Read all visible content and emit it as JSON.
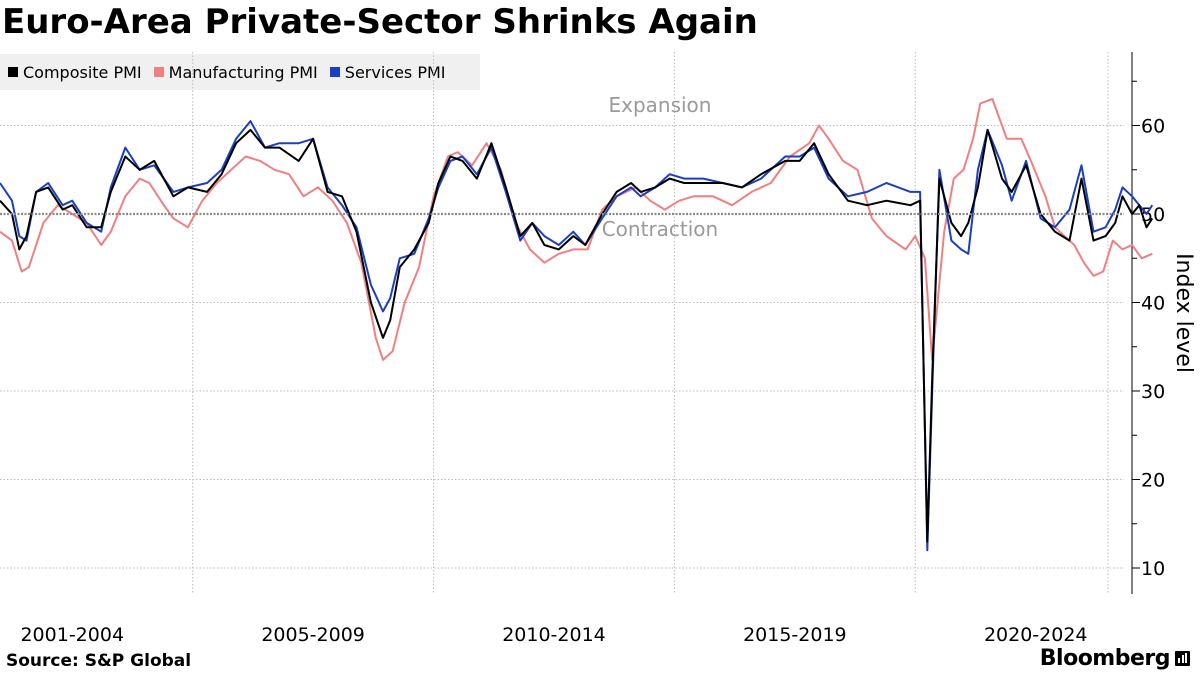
{
  "title": "Euro-Area Private-Sector Shrinks Again",
  "source": "Source: S&P Global",
  "brand": "Bloomberg",
  "colors": {
    "composite": "#000000",
    "manufacturing": "#f08080",
    "services": "#1a3fc2",
    "grid": "#bdbdbd",
    "annotation": "#9a9a9a"
  },
  "chart_data": {
    "type": "line",
    "ylabel": "Index level",
    "ylim": [
      7,
      68
    ],
    "yticks": [
      10,
      20,
      30,
      40,
      50,
      60
    ],
    "reference_line": 50,
    "x_range": [
      2001.0,
      2024.0
    ],
    "xtick_boundaries": [
      2005,
      2010,
      2015,
      2020
    ],
    "xlabels": [
      {
        "label": "2001-2004",
        "center": 2002.5
      },
      {
        "label": "2005-2009",
        "center": 2007.5
      },
      {
        "label": "2010-2014",
        "center": 2012.5
      },
      {
        "label": "2015-2019",
        "center": 2017.5
      },
      {
        "label": "2020-2024",
        "center": 2022.5
      }
    ],
    "annotations": [
      {
        "text": "Expansion",
        "x": 2014.7,
        "y": 61.5
      },
      {
        "text": "Contraction",
        "x": 2014.7,
        "y": 47.5
      }
    ],
    "series": [
      {
        "name": "Composite PMI",
        "key": "composite",
        "x": [
          2001.0,
          2001.25,
          2001.4,
          2001.55,
          2001.75,
          2002.0,
          2002.3,
          2002.5,
          2002.8,
          2003.1,
          2003.3,
          2003.6,
          2003.9,
          2004.2,
          2004.4,
          2004.6,
          2004.9,
          2005.3,
          2005.6,
          2005.9,
          2006.2,
          2006.5,
          2006.8,
          2007.2,
          2007.5,
          2007.8,
          2008.1,
          2008.4,
          2008.7,
          2008.95,
          2009.1,
          2009.3,
          2009.6,
          2009.9,
          2010.1,
          2010.35,
          2010.6,
          2010.9,
          2011.2,
          2011.5,
          2011.8,
          2012.05,
          2012.3,
          2012.6,
          2012.9,
          2013.15,
          2013.5,
          2013.8,
          2014.1,
          2014.3,
          2014.6,
          2014.9,
          2015.2,
          2015.6,
          2016.0,
          2016.4,
          2016.8,
          2017.3,
          2017.6,
          2017.9,
          2018.2,
          2018.6,
          2019.0,
          2019.4,
          2019.9,
          2020.1,
          2020.25,
          2020.35,
          2020.5,
          2020.75,
          2020.95,
          2021.1,
          2021.3,
          2021.5,
          2021.8,
          2022.0,
          2022.3,
          2022.6,
          2022.9,
          2023.2,
          2023.45,
          2023.7,
          2023.95,
          2024.15,
          2024.3,
          2024.5,
          2024.65,
          2024.8,
          2024.92
        ],
        "values": [
          51.5,
          50.0,
          46.0,
          47.5,
          52.5,
          53.0,
          50.5,
          51.0,
          48.5,
          48.5,
          52.5,
          56.5,
          55.0,
          56.0,
          54.0,
          52.0,
          53.0,
          52.5,
          54.5,
          58.0,
          59.5,
          57.5,
          57.5,
          56.0,
          58.5,
          52.5,
          52.0,
          48.0,
          40.0,
          36.0,
          38.0,
          44.0,
          46.0,
          49.0,
          53.5,
          56.5,
          56.0,
          54.0,
          58.0,
          53.0,
          47.5,
          49.0,
          46.5,
          46.0,
          47.5,
          46.5,
          50.0,
          52.5,
          53.5,
          52.5,
          53.0,
          54.0,
          53.5,
          53.5,
          53.5,
          53.0,
          54.5,
          56.0,
          56.0,
          58.0,
          54.5,
          51.5,
          51.0,
          51.5,
          51.0,
          51.5,
          13.0,
          31.5,
          54.0,
          49.0,
          47.5,
          49.0,
          53.0,
          59.5,
          54.0,
          52.5,
          55.5,
          50.0,
          48.0,
          47.0,
          54.0,
          47.0,
          47.5,
          49.0,
          52.0,
          50.0,
          51.0,
          48.5,
          49.5
        ]
      },
      {
        "name": "Manufacturing PMI",
        "key": "manufacturing",
        "x": [
          2001.0,
          2001.25,
          2001.45,
          2001.6,
          2001.9,
          2002.2,
          2002.5,
          2002.8,
          2003.1,
          2003.3,
          2003.6,
          2003.9,
          2004.1,
          2004.4,
          2004.6,
          2004.9,
          2005.2,
          2005.5,
          2005.8,
          2006.1,
          2006.4,
          2006.7,
          2007.0,
          2007.3,
          2007.6,
          2007.9,
          2008.2,
          2008.5,
          2008.8,
          2008.95,
          2009.15,
          2009.4,
          2009.7,
          2010.0,
          2010.3,
          2010.5,
          2010.8,
          2011.1,
          2011.4,
          2011.7,
          2012.0,
          2012.3,
          2012.6,
          2012.9,
          2013.2,
          2013.5,
          2013.8,
          2014.2,
          2014.5,
          2014.8,
          2015.1,
          2015.4,
          2015.8,
          2016.2,
          2016.6,
          2017.0,
          2017.4,
          2017.8,
          2018.0,
          2018.2,
          2018.5,
          2018.8,
          2019.1,
          2019.4,
          2019.8,
          2020.0,
          2020.2,
          2020.35,
          2020.6,
          2020.8,
          2021.0,
          2021.2,
          2021.35,
          2021.6,
          2021.9,
          2022.2,
          2022.4,
          2022.7,
          2022.9,
          2023.1,
          2023.3,
          2023.5,
          2023.7,
          2023.9,
          2024.1,
          2024.3,
          2024.5,
          2024.7,
          2024.92
        ],
        "values": [
          48.0,
          47.0,
          43.5,
          44.0,
          49.0,
          51.0,
          50.0,
          49.0,
          46.5,
          48.0,
          52.0,
          54.0,
          53.5,
          51.0,
          49.5,
          48.5,
          51.5,
          53.5,
          55.0,
          56.5,
          56.0,
          55.0,
          54.5,
          52.0,
          53.0,
          51.5,
          49.0,
          44.5,
          36.0,
          33.5,
          34.5,
          40.0,
          44.0,
          52.0,
          56.5,
          57.0,
          55.5,
          58.0,
          55.0,
          49.0,
          46.0,
          44.5,
          45.5,
          46.0,
          46.0,
          50.5,
          52.0,
          53.0,
          51.5,
          50.5,
          51.5,
          52.0,
          52.0,
          51.0,
          52.5,
          53.5,
          56.5,
          58.0,
          60.0,
          58.5,
          56.0,
          55.0,
          49.5,
          47.5,
          46.0,
          47.5,
          45.0,
          33.5,
          48.0,
          54.0,
          55.0,
          58.5,
          62.5,
          63.0,
          58.5,
          58.5,
          56.0,
          52.0,
          48.5,
          47.5,
          46.5,
          44.5,
          43.0,
          43.5,
          47.0,
          46.0,
          46.5,
          45.0,
          45.5
        ]
      },
      {
        "name": "Services PMI",
        "key": "services",
        "x": [
          2001.0,
          2001.25,
          2001.4,
          2001.55,
          2001.75,
          2002.0,
          2002.3,
          2002.5,
          2002.8,
          2003.1,
          2003.3,
          2003.6,
          2003.9,
          2004.2,
          2004.4,
          2004.6,
          2004.9,
          2005.3,
          2005.6,
          2005.9,
          2006.2,
          2006.5,
          2006.8,
          2007.2,
          2007.5,
          2007.8,
          2008.1,
          2008.4,
          2008.7,
          2008.95,
          2009.1,
          2009.3,
          2009.6,
          2009.9,
          2010.1,
          2010.35,
          2010.6,
          2010.9,
          2011.2,
          2011.5,
          2011.8,
          2012.05,
          2012.3,
          2012.6,
          2012.9,
          2013.15,
          2013.5,
          2013.8,
          2014.1,
          2014.3,
          2014.6,
          2014.9,
          2015.2,
          2015.6,
          2016.0,
          2016.4,
          2016.8,
          2017.3,
          2017.6,
          2017.9,
          2018.2,
          2018.6,
          2019.0,
          2019.4,
          2019.9,
          2020.1,
          2020.25,
          2020.35,
          2020.5,
          2020.75,
          2020.95,
          2021.1,
          2021.3,
          2021.5,
          2021.8,
          2022.0,
          2022.3,
          2022.6,
          2022.9,
          2023.2,
          2023.45,
          2023.7,
          2023.95,
          2024.15,
          2024.3,
          2024.5,
          2024.65,
          2024.8,
          2024.92
        ],
        "values": [
          53.5,
          51.5,
          47.5,
          47.0,
          52.5,
          53.5,
          51.0,
          51.5,
          49.0,
          48.0,
          53.0,
          57.5,
          55.0,
          55.5,
          54.0,
          52.5,
          53.0,
          53.5,
          55.0,
          58.5,
          60.5,
          57.5,
          58.0,
          58.0,
          58.5,
          53.0,
          51.0,
          48.5,
          42.0,
          39.0,
          40.5,
          45.0,
          45.5,
          49.5,
          53.0,
          56.0,
          56.5,
          54.5,
          57.5,
          52.5,
          47.0,
          49.0,
          47.5,
          46.5,
          48.0,
          46.5,
          49.5,
          52.0,
          53.0,
          52.0,
          53.0,
          54.5,
          54.0,
          54.0,
          53.5,
          53.0,
          54.0,
          56.5,
          56.5,
          57.5,
          54.0,
          52.0,
          52.5,
          53.5,
          52.5,
          52.5,
          12.0,
          30.0,
          55.0,
          47.0,
          46.0,
          45.5,
          55.0,
          59.5,
          55.5,
          51.5,
          56.0,
          49.5,
          48.5,
          50.5,
          55.5,
          48.0,
          48.5,
          50.5,
          53.0,
          52.0,
          51.0,
          50.0,
          51.0
        ]
      }
    ]
  }
}
